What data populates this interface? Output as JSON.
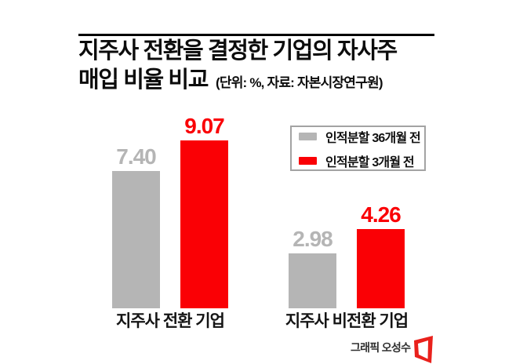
{
  "header": {
    "title_line1": "지주사 전환을 결정한 기업의 자사주",
    "title_line2": "매입 비율 비교",
    "unit_source": "(단위: %, 자료: 자본시장연구원)"
  },
  "chart_data": {
    "type": "bar",
    "title": "지주사 전환을 결정한 기업의 자사주 매입 비율 비교",
    "unit": "%",
    "source": "자본시장연구원",
    "categories": [
      "지주사 전환 기업",
      "지주사 비전환 기업"
    ],
    "series": [
      {
        "name": "인적분할 36개월 전",
        "color": "#b5b5b5",
        "values": [
          7.4,
          2.98
        ]
      },
      {
        "name": "인적분할 3개월 전",
        "color": "#fa0005",
        "values": [
          9.07,
          4.26
        ]
      }
    ],
    "ylim": [
      0,
      10
    ],
    "grid": false,
    "legend_position": "upper-right",
    "value_label_format": "0.00"
  },
  "footer": {
    "credit": "그래픽 오성수"
  },
  "colors": {
    "bar_gray": "#b5b5b5",
    "bar_red": "#fa0005",
    "title_text": "#0c0c0c",
    "legend_border": "#a3a3a3",
    "logo_red": "#e9211c",
    "credit_text": "#2e2e2e"
  }
}
